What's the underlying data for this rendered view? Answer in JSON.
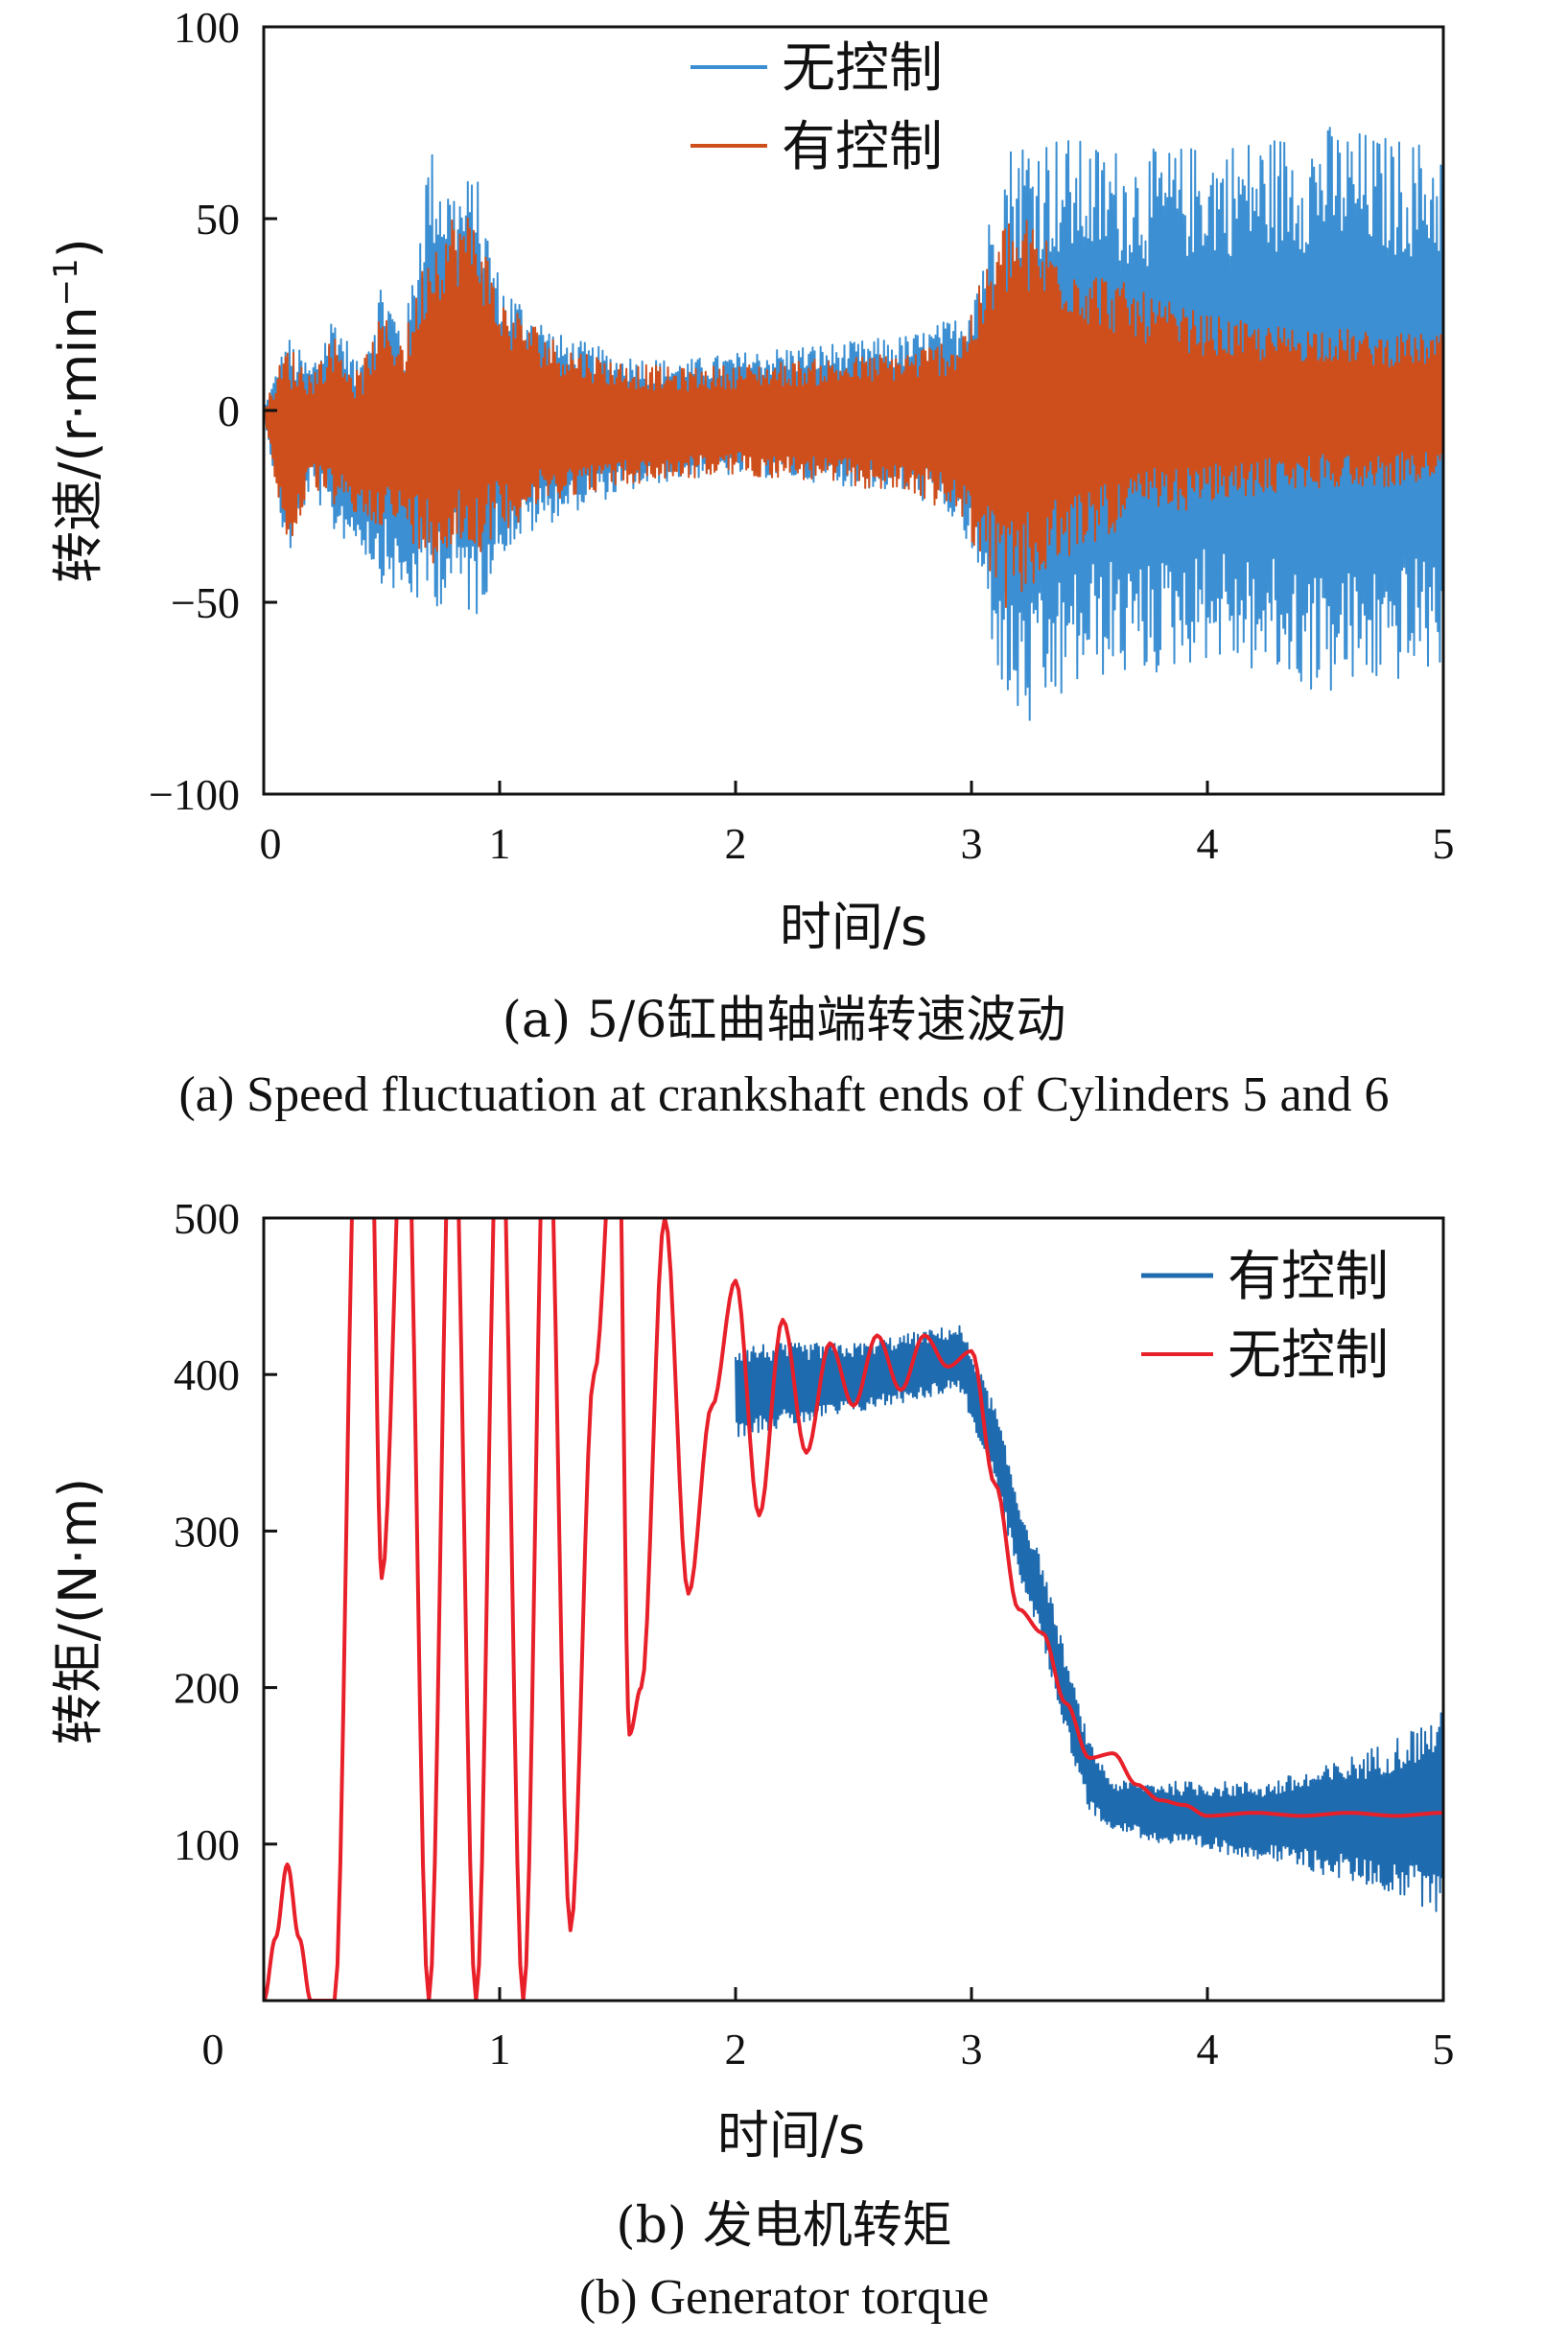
{
  "colors": {
    "blue_a": "#3b8fd2",
    "orange_a": "#cf4f1c",
    "blue_b": "#1f6bb0",
    "red_b": "#e8202a",
    "axis": "#111111"
  },
  "captions": {
    "a_zh": "(a) 5/6缸曲轴端转速波动",
    "a_en": "(a)  Speed fluctuation at crankshaft ends of Cylinders 5 and 6",
    "b_zh": "(b) 发电机转矩",
    "b_en": "(b) Generator torque"
  },
  "chart_data": [
    {
      "type": "line",
      "xlabel": "时间/s",
      "ylabel": "转速/(r·min",
      "ylabel_sup": "−1",
      "ylabel_close": ")",
      "xlim": [
        0,
        5
      ],
      "ylim": [
        -100,
        100
      ],
      "xticks": [
        0,
        1,
        2,
        3,
        4,
        5
      ],
      "xtick_labels": [
        "0",
        "1",
        "2",
        "3",
        "4",
        "5"
      ],
      "yticks": [
        -100,
        -50,
        0,
        50,
        100
      ],
      "ytick_labels": [
        "−100",
        "−50",
        "0",
        "50",
        "100"
      ],
      "legend_position": "top-center",
      "series": [
        {
          "name": "无控制",
          "color": "#3b8fd2",
          "style": "dense oscillation",
          "x": [
            0.0,
            0.1,
            0.2,
            0.3,
            0.4,
            0.5,
            0.6,
            0.7,
            0.8,
            0.9,
            1.0,
            1.25,
            1.5,
            1.75,
            2.0,
            2.25,
            2.5,
            2.75,
            2.95,
            3.05,
            3.15,
            3.25,
            3.5,
            3.75,
            4.0,
            4.25,
            4.5,
            4.75,
            5.0
          ],
          "upper": [
            0,
            20,
            12,
            27,
            12,
            36,
            22,
            70,
            60,
            62,
            35,
            20,
            15,
            13,
            15,
            17,
            18,
            20,
            25,
            45,
            70,
            75,
            70,
            68,
            70,
            72,
            75,
            72,
            70
          ],
          "lower": [
            0,
            -40,
            -20,
            -33,
            -35,
            -45,
            -50,
            -52,
            -50,
            -55,
            -38,
            -28,
            -22,
            -18,
            -17,
            -18,
            -20,
            -22,
            -30,
            -50,
            -80,
            -85,
            -70,
            -70,
            -65,
            -70,
            -75,
            -72,
            -68
          ]
        },
        {
          "name": "有控制",
          "color": "#cf4f1c",
          "style": "dense oscillation",
          "x": [
            0.0,
            0.1,
            0.2,
            0.3,
            0.4,
            0.5,
            0.6,
            0.7,
            0.8,
            0.9,
            1.0,
            1.25,
            1.5,
            1.75,
            2.0,
            2.25,
            2.5,
            2.75,
            2.95,
            3.05,
            3.15,
            3.25,
            3.5,
            3.75,
            4.0,
            4.25,
            4.5,
            4.75,
            5.0
          ],
          "upper": [
            0,
            18,
            10,
            20,
            10,
            25,
            20,
            45,
            52,
            52,
            30,
            18,
            13,
            11,
            12,
            13,
            14,
            16,
            20,
            35,
            52,
            50,
            38,
            30,
            25,
            22,
            22,
            20,
            20
          ],
          "lower": [
            0,
            -38,
            -20,
            -25,
            -28,
            -30,
            -32,
            -40,
            -38,
            -38,
            -32,
            -23,
            -20,
            -18,
            -17,
            -18,
            -20,
            -22,
            -28,
            -40,
            -52,
            -48,
            -35,
            -28,
            -25,
            -22,
            -20,
            -20,
            -18
          ]
        }
      ]
    },
    {
      "type": "line",
      "xlabel": "时间/s",
      "ylabel": "转矩/(N·m)",
      "xlim": [
        0,
        5
      ],
      "ylim": [
        0,
        500
      ],
      "xticks": [
        0,
        1,
        2,
        3,
        4,
        5
      ],
      "xtick_labels": [
        "0",
        "1",
        "2",
        "3",
        "4",
        "5"
      ],
      "yticks": [
        100,
        200,
        300,
        400,
        500
      ],
      "ytick_labels": [
        "100",
        "200",
        "300",
        "400",
        "500"
      ],
      "legend_position": "top-right",
      "series": [
        {
          "name": "有控制",
          "color": "#1f6bb0",
          "style": "oscillation band",
          "x": [
            2.0,
            2.5,
            2.95,
            3.1,
            3.2,
            3.3,
            3.4,
            3.5,
            3.6,
            3.7,
            3.8,
            4.0,
            4.25,
            4.5,
            4.75,
            5.0
          ],
          "upper": [
            420,
            420,
            432,
            380,
            320,
            280,
            220,
            165,
            140,
            140,
            140,
            140,
            140,
            150,
            165,
            185
          ],
          "lower": [
            360,
            375,
            390,
            330,
            270,
            230,
            170,
            120,
            110,
            105,
            100,
            95,
            90,
            80,
            70,
            55
          ]
        },
        {
          "name": "无控制",
          "color": "#e8202a",
          "style": "damped oscillation",
          "x": [
            0.0,
            0.05,
            0.1,
            0.15,
            0.2,
            0.3,
            0.4,
            0.45,
            0.5,
            0.6,
            0.7,
            0.8,
            0.9,
            1.0,
            1.1,
            1.2,
            1.3,
            1.4,
            1.5,
            1.55,
            1.6,
            1.7,
            1.8,
            1.9,
            2.0,
            2.1,
            2.2,
            2.3,
            2.4,
            2.5,
            2.6,
            2.7,
            2.8,
            2.9,
            3.0,
            3.1,
            3.2,
            3.3,
            3.4,
            3.5,
            3.6,
            3.7,
            3.8,
            3.9,
            4.0,
            4.2,
            4.4,
            4.6,
            4.8,
            5.0
          ],
          "y": [
            0,
            40,
            87,
            40,
            0,
            0,
            600,
            600,
            270,
            600,
            0,
            600,
            0,
            600,
            0,
            600,
            45,
            400,
            600,
            170,
            200,
            500,
            260,
            380,
            460,
            310,
            435,
            350,
            420,
            380,
            425,
            390,
            425,
            405,
            415,
            330,
            250,
            235,
            190,
            155,
            158,
            138,
            128,
            125,
            118,
            120,
            118,
            120,
            118,
            120
          ]
        }
      ]
    }
  ]
}
